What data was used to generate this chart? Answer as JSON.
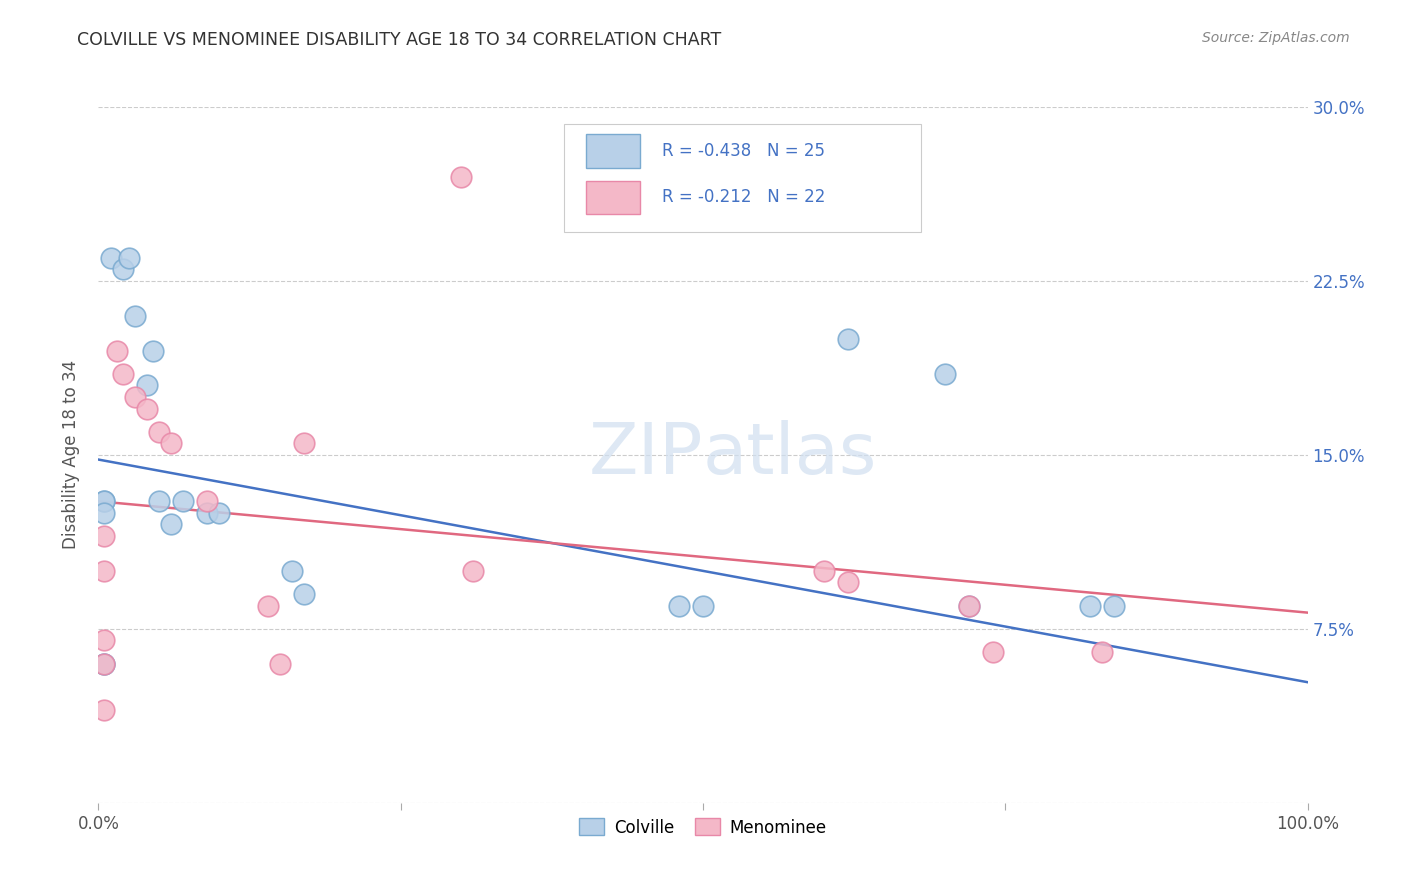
{
  "title": "COLVILLE VS MENOMINEE DISABILITY AGE 18 TO 34 CORRELATION CHART",
  "source": "Source: ZipAtlas.com",
  "ylabel": "Disability Age 18 to 34",
  "y_ticks": [
    0.0,
    0.075,
    0.15,
    0.225,
    0.3
  ],
  "y_tick_labels": [
    "",
    "7.5%",
    "15.0%",
    "22.5%",
    "30.0%"
  ],
  "x_ticks": [
    0.0,
    0.25,
    0.5,
    0.75,
    1.0
  ],
  "colville_color": "#b8d0e8",
  "colville_edge_color": "#7aaad0",
  "menominee_color": "#f4b8c8",
  "menominee_edge_color": "#e888a8",
  "blue_line_color": "#4472c4",
  "pink_line_color": "#e06880",
  "watermark_color": "#d0dff0",
  "colville_R": -0.438,
  "colville_N": 25,
  "menominee_R": -0.212,
  "menominee_N": 22,
  "colville_x": [
    0.005,
    0.01,
    0.02,
    0.025,
    0.03,
    0.04,
    0.045,
    0.05,
    0.06,
    0.07,
    0.09,
    0.1,
    0.16,
    0.17,
    0.005,
    0.005,
    0.005,
    0.48,
    0.5,
    0.62,
    0.7,
    0.72,
    0.82,
    0.84,
    0.005
  ],
  "colville_y": [
    0.13,
    0.235,
    0.23,
    0.235,
    0.21,
    0.18,
    0.195,
    0.13,
    0.12,
    0.13,
    0.125,
    0.125,
    0.1,
    0.09,
    0.13,
    0.125,
    0.06,
    0.085,
    0.085,
    0.2,
    0.185,
    0.085,
    0.085,
    0.085,
    0.06
  ],
  "menominee_x": [
    0.015,
    0.02,
    0.03,
    0.04,
    0.05,
    0.06,
    0.09,
    0.17,
    0.3,
    0.31,
    0.005,
    0.005,
    0.005,
    0.005,
    0.14,
    0.15,
    0.6,
    0.62,
    0.72,
    0.74,
    0.83,
    0.005
  ],
  "menominee_y": [
    0.195,
    0.185,
    0.175,
    0.17,
    0.16,
    0.155,
    0.13,
    0.155,
    0.27,
    0.1,
    0.115,
    0.1,
    0.07,
    0.04,
    0.085,
    0.06,
    0.1,
    0.095,
    0.085,
    0.065,
    0.065,
    0.06
  ]
}
